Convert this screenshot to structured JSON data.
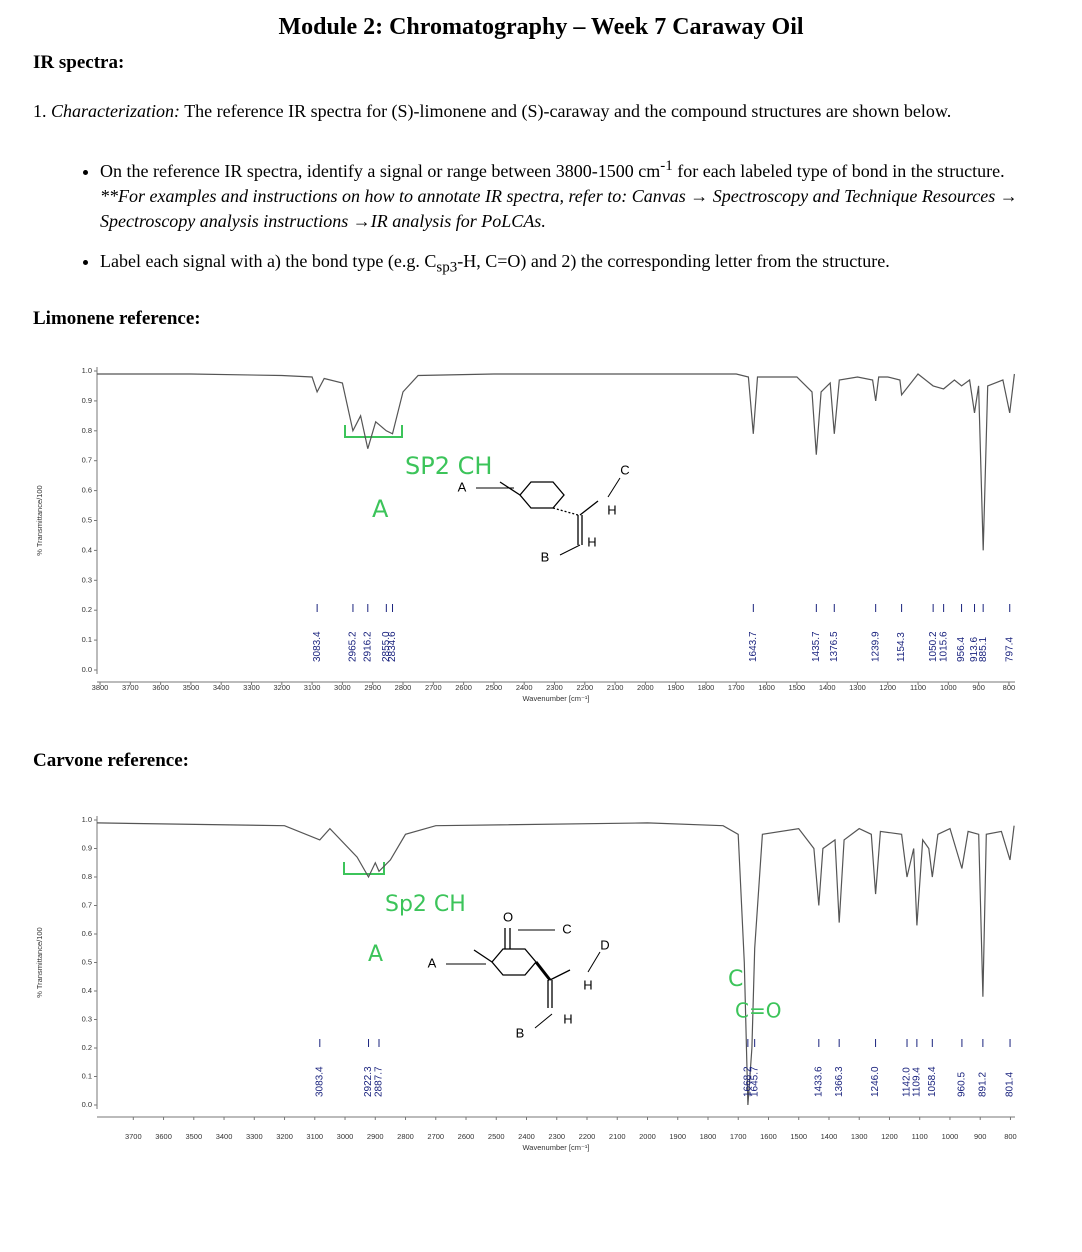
{
  "header": {
    "title": "Module 2: Chromatography – Week 7 Caraway Oil"
  },
  "section": "IR spectra:",
  "question": {
    "number": "1.",
    "label": "Characterization:",
    "text": "The reference IR spectra for (S)-limonene and (S)-caraway and the compound structures are shown below."
  },
  "bullets": [
    {
      "text": "On the reference IR spectra, identify a signal or range between 3800-1500 cm",
      "sup": "-1",
      "text2": "for each labeled type of bond in the structure.",
      "note": "**For examples and instructions on how to annotate IR spectra, refer to: Canvas → Spectroscopy and Technique Resources → Spectroscopy analysis instructions →IR analysis for PoLCAs."
    },
    {
      "text": "Label each signal with a) the bond type (e.g. C",
      "sub": "sp3",
      "text2": "-H, C=O) and 2) the corresponding letter from the structure."
    }
  ],
  "headings": [
    "Limonene reference:",
    "Carvone reference:"
  ],
  "chart_data": [
    {
      "type": "line",
      "y_label": "% Transmittance/100",
      "x_label": "Wavenumber [cm⁻¹]",
      "color": "#555555",
      "xlim": [
        3810,
        780
      ],
      "ylim": [
        0,
        1
      ],
      "xticks": [
        3800,
        3700,
        3600,
        3500,
        3400,
        3300,
        3200,
        3100,
        3000,
        2900,
        2800,
        2700,
        2600,
        2500,
        2400,
        2300,
        2200,
        2100,
        2000,
        1900,
        1800,
        1700,
        1600,
        1500,
        1400,
        1300,
        1200,
        1100,
        1000,
        900,
        800
      ],
      "yticks": [
        {
          "value": 0,
          "label": "0.0"
        },
        0.1,
        0.2,
        0.3,
        0.4,
        0.5,
        0.6,
        0.7,
        0.8,
        0.9,
        {
          "value": 1,
          "label": "1.0"
        }
      ],
      "x": [
        3810,
        3500,
        3200,
        3100,
        3083.4,
        3060,
        3000,
        2965.2,
        2940,
        2916.2,
        2890,
        2855,
        2834.6,
        2800,
        2750,
        2500,
        2000,
        1700,
        1660,
        1643.7,
        1630,
        1500,
        1450,
        1435.7,
        1420,
        1390,
        1376.5,
        1360,
        1300,
        1250,
        1239.9,
        1230,
        1200,
        1160,
        1154.3,
        1100,
        1050.2,
        1015.6,
        980,
        956.4,
        930,
        913.6,
        900,
        885.1,
        870,
        820,
        797.4,
        782
      ],
      "values": [
        0.99,
        0.99,
        0.985,
        0.98,
        0.93,
        0.975,
        0.96,
        0.8,
        0.85,
        0.74,
        0.83,
        0.8,
        0.79,
        0.93,
        0.985,
        0.99,
        0.99,
        0.99,
        0.98,
        0.79,
        0.98,
        0.98,
        0.93,
        0.72,
        0.93,
        0.96,
        0.79,
        0.97,
        0.98,
        0.97,
        0.9,
        0.98,
        0.98,
        0.97,
        0.92,
        0.99,
        0.95,
        0.94,
        0.97,
        0.95,
        0.97,
        0.86,
        0.95,
        0.4,
        0.95,
        0.97,
        0.86,
        0.99
      ],
      "peaks": [
        3083.4,
        2965.2,
        2916.2,
        {
          "value": 2855,
          "label": "2855.0"
        },
        2834.6,
        1643.7,
        1435.7,
        1376.5,
        1239.9,
        1154.3,
        1050.2,
        1015.6,
        956.4,
        913.6,
        885.1,
        797.4
      ],
      "annotations": [
        "SP2 CH",
        "A"
      ],
      "structure_labels": [
        "A",
        "B",
        "C",
        "H",
        "H"
      ]
    },
    {
      "type": "line",
      "y_label": "% Transmittance/100",
      "x_label": "Wavenumber [cm⁻¹]",
      "color": "#555555",
      "xlim": [
        3820,
        785
      ],
      "ylim": [
        0,
        1
      ],
      "xticks": [
        3700,
        3600,
        3500,
        3400,
        3300,
        3200,
        3100,
        3000,
        2900,
        2800,
        2700,
        2600,
        2500,
        2400,
        2300,
        2200,
        2100,
        2000,
        1900,
        1800,
        1700,
        1600,
        1500,
        1400,
        1300,
        1200,
        1100,
        1000,
        900,
        800
      ],
      "yticks": [
        {
          "value": 0,
          "label": "0.0"
        },
        0.1,
        0.2,
        0.3,
        0.4,
        0.5,
        0.6,
        0.7,
        0.8,
        0.9,
        {
          "value": 1,
          "label": "1.0"
        }
      ],
      "x": [
        3820,
        3200,
        3083.4,
        3050,
        2960,
        2922.3,
        2900,
        2887.7,
        2850,
        2800,
        2700,
        2000,
        1750,
        1700,
        1680,
        1668.2,
        1655,
        1645.7,
        1620,
        1500,
        1450,
        1433.6,
        1420,
        1380,
        1366.3,
        1350,
        1300,
        1260,
        1246,
        1230,
        1160,
        1142,
        1120,
        1109.4,
        1090,
        1070,
        1058.4,
        1040,
        1000,
        960.5,
        940,
        905,
        891.2,
        880,
        830,
        801.4,
        788
      ],
      "values": [
        0.99,
        0.98,
        0.93,
        0.97,
        0.87,
        0.8,
        0.85,
        0.82,
        0.86,
        0.95,
        0.98,
        0.99,
        0.98,
        0.95,
        0.5,
        0,
        0.2,
        0.55,
        0.95,
        0.97,
        0.9,
        0.7,
        0.9,
        0.93,
        0.64,
        0.93,
        0.97,
        0.95,
        0.74,
        0.96,
        0.95,
        0.8,
        0.9,
        0.63,
        0.93,
        0.9,
        0.8,
        0.95,
        0.97,
        0.83,
        0.96,
        0.95,
        0.38,
        0.95,
        0.96,
        0.86,
        0.98
      ],
      "peaks": [
        3083.4,
        2922.3,
        2887.7,
        1668.2,
        1645.7,
        1433.6,
        1366.3,
        {
          "value": 1246,
          "label": "1246.0"
        },
        {
          "value": 1142,
          "label": "1142.0"
        },
        1109.4,
        1058.4,
        960.5,
        891.2,
        801.4
      ],
      "annotations": [
        "Sp2 CH",
        "A",
        "C",
        "C=O"
      ],
      "structure_labels": [
        "A",
        "B",
        "C",
        "D",
        "H",
        "H",
        "O"
      ]
    }
  ]
}
